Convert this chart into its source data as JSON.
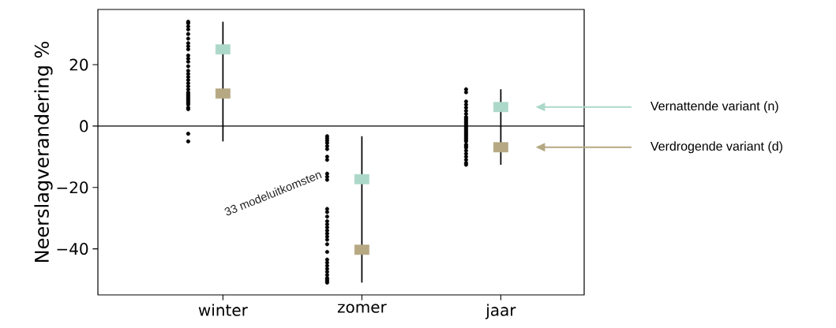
{
  "chart_data": {
    "type": "scatter",
    "ylabel": "Neerslagverandering %",
    "categories": [
      "winter",
      "zomer",
      "jaar"
    ],
    "ylim": [
      -55,
      38
    ],
    "yticks": [
      {
        "value": -40,
        "label": "−40"
      },
      {
        "value": -20,
        "label": "−20"
      },
      0,
      20
    ],
    "legend": "right",
    "annotations": [
      "33 modeluitkomsten"
    ],
    "ref_lines": [
      {
        "axis": "y",
        "value": 0,
        "color": "#000000"
      }
    ],
    "series": [
      {
        "marker": "circle",
        "color": "#000000",
        "x": [
          "winter",
          "winter",
          "winter",
          "winter",
          "winter",
          "winter",
          "winter",
          "winter",
          "winter",
          "winter",
          "winter",
          "winter",
          "winter",
          "winter",
          "winter",
          "winter",
          "winter",
          "winter",
          "winter",
          "winter",
          "winter",
          "winter",
          "winter",
          "winter",
          "winter",
          "winter",
          "winter",
          "winter",
          "winter",
          "winter",
          "winter",
          "winter",
          "winter",
          "zomer",
          "zomer",
          "zomer",
          "zomer",
          "zomer",
          "zomer",
          "zomer",
          "zomer",
          "zomer",
          "zomer",
          "zomer",
          "zomer",
          "zomer",
          "zomer",
          "zomer",
          "zomer",
          "zomer",
          "zomer",
          "zomer",
          "zomer",
          "zomer",
          "zomer",
          "zomer",
          "zomer",
          "zomer",
          "zomer",
          "zomer",
          "zomer",
          "zomer",
          "zomer",
          "zomer",
          "zomer",
          "zomer",
          "jaar",
          "jaar",
          "jaar",
          "jaar",
          "jaar",
          "jaar",
          "jaar",
          "jaar",
          "jaar",
          "jaar",
          "jaar",
          "jaar",
          "jaar",
          "jaar",
          "jaar",
          "jaar",
          "jaar",
          "jaar",
          "jaar",
          "jaar",
          "jaar",
          "jaar",
          "jaar",
          "jaar",
          "jaar",
          "jaar",
          "jaar",
          "jaar",
          "jaar",
          "jaar",
          "jaar",
          "jaar",
          "jaar"
        ],
        "values": [
          34,
          33.5,
          32.5,
          31.5,
          30,
          28.5,
          27,
          26,
          25,
          23,
          22,
          21,
          19.5,
          18,
          17,
          16,
          15,
          14,
          13,
          12,
          11,
          10.5,
          10,
          9.5,
          9,
          8.5,
          8,
          7.5,
          7,
          6,
          5.5,
          -2.5,
          -5,
          -3.3,
          -4,
          -4.7,
          -5.5,
          -6.5,
          -7.5,
          -10,
          -11,
          -15.5,
          -16.5,
          -17.5,
          -27,
          -28,
          -29.5,
          -31,
          -32,
          -33,
          -34,
          -35,
          -36,
          -37,
          -38.5,
          -41,
          -43.5,
          -44.5,
          -45.5,
          -46.5,
          -47.5,
          -48.5,
          -49.5,
          -50,
          -50.5,
          -51,
          12,
          11,
          8,
          7,
          6,
          5,
          4,
          3,
          2.5,
          2,
          1.5,
          1,
          0.5,
          0,
          -0.5,
          -1,
          -1.5,
          -2,
          -2.5,
          -3,
          -3.5,
          -4,
          -4.5,
          -5,
          -6,
          -6.5,
          -7,
          -8,
          -9,
          -10,
          -11,
          -12,
          -12.6
        ]
      },
      {
        "marker": "square",
        "name": "Vernattende variant (n)",
        "color": "#acd8c9",
        "values": [
          25,
          -17.3,
          6.2
        ],
        "errors": [
          [
            -5,
            34
          ],
          [
            -51,
            -3.3
          ],
          [
            -12.6,
            12
          ]
        ]
      },
      {
        "marker": "square",
        "name": "Verdrogende variant (d)",
        "color": "#b5a882",
        "values": [
          10.6,
          -40.3,
          -6.9
        ]
      }
    ]
  }
}
